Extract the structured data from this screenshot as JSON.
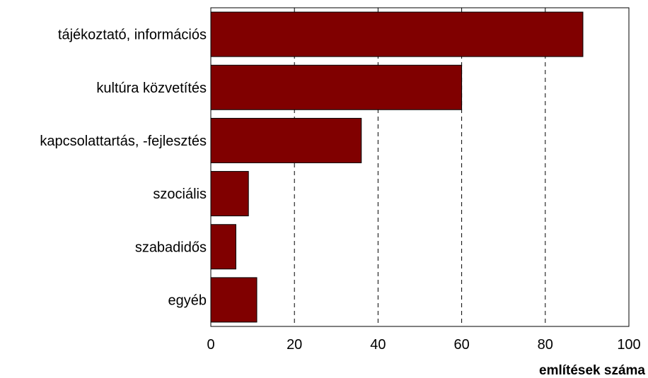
{
  "chart_data": {
    "type": "bar",
    "orientation": "horizontal",
    "categories": [
      "tájékoztató, információs",
      "kultúra közvetítés",
      "kapcsolattartás, -fejlesztés",
      "szociális",
      "szabadidős",
      "egyéb"
    ],
    "values": [
      89,
      60,
      36,
      9,
      6,
      11
    ],
    "title": "",
    "xlabel": "említések száma",
    "ylabel": "",
    "xlim": [
      0,
      100
    ],
    "xticks": [
      "0",
      "20",
      "40",
      "60",
      "80",
      "100"
    ],
    "grid": "vertical dashed",
    "bar_color": "#800000",
    "bar_edge_color": "#000000"
  }
}
